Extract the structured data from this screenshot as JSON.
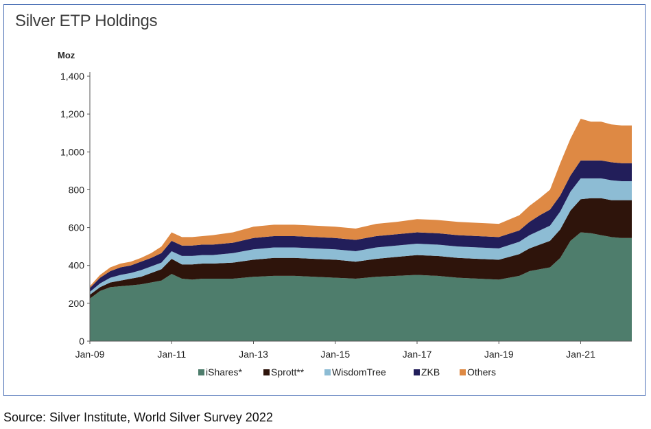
{
  "chart_data": {
    "type": "area",
    "title": "Silver ETP Holdings",
    "ylabel": "Moz",
    "xlabel": "",
    "ylim": [
      0,
      1400
    ],
    "y_ticks": [
      "0",
      "200",
      "400",
      "600",
      "800",
      "1,000",
      "1,200",
      "1,400"
    ],
    "y_tick_values": [
      0,
      200,
      400,
      600,
      800,
      1000,
      1200,
      1400
    ],
    "x_tick_labels": [
      "Jan-09",
      "Jan-11",
      "Jan-13",
      "Jan-15",
      "Jan-17",
      "Jan-19",
      "Jan-21"
    ],
    "x_tick_values": [
      2009,
      2011,
      2013,
      2015,
      2017,
      2019,
      2021
    ],
    "xlim": [
      2009,
      2022.25
    ],
    "stacked": true,
    "legend_position": "bottom",
    "x": [
      2009.0,
      2009.25,
      2009.5,
      2009.75,
      2010.0,
      2010.25,
      2010.5,
      2010.75,
      2011.0,
      2011.25,
      2011.5,
      2011.75,
      2012.0,
      2012.5,
      2013.0,
      2013.5,
      2014.0,
      2014.5,
      2015.0,
      2015.5,
      2016.0,
      2016.5,
      2017.0,
      2017.5,
      2018.0,
      2018.5,
      2019.0,
      2019.5,
      2019.75,
      2020.0,
      2020.25,
      2020.5,
      2020.75,
      2021.0,
      2021.25,
      2021.5,
      2021.75,
      2022.0,
      2022.25
    ],
    "series": [
      {
        "name": "iShares*",
        "color": "#4e7d6c",
        "values": [
          225,
          265,
          285,
          290,
          295,
          300,
          310,
          320,
          355,
          330,
          325,
          330,
          330,
          330,
          340,
          345,
          345,
          340,
          335,
          330,
          340,
          345,
          350,
          345,
          335,
          330,
          325,
          345,
          370,
          380,
          390,
          440,
          530,
          575,
          570,
          560,
          550,
          545,
          545
        ]
      },
      {
        "name": "Sprott**",
        "color": "#2e140b",
        "values": [
          20,
          20,
          25,
          30,
          35,
          40,
          50,
          60,
          80,
          75,
          80,
          80,
          80,
          85,
          90,
          95,
          95,
          95,
          95,
          90,
          95,
          100,
          105,
          105,
          105,
          105,
          105,
          115,
          120,
          130,
          140,
          150,
          160,
          175,
          185,
          195,
          195,
          200,
          200
        ]
      },
      {
        "name": "WisdomTree",
        "color": "#8dbcd4",
        "values": [
          15,
          20,
          25,
          30,
          30,
          35,
          35,
          35,
          40,
          45,
          45,
          45,
          45,
          50,
          55,
          55,
          55,
          55,
          55,
          55,
          60,
          60,
          60,
          60,
          60,
          60,
          60,
          65,
          70,
          75,
          80,
          95,
          100,
          110,
          105,
          105,
          105,
          100,
          100
        ]
      },
      {
        "name": "ZKB",
        "color": "#221e5a",
        "values": [
          20,
          30,
          35,
          40,
          40,
          45,
          45,
          50,
          55,
          55,
          55,
          55,
          55,
          55,
          60,
          60,
          60,
          60,
          60,
          60,
          60,
          60,
          60,
          60,
          60,
          60,
          60,
          60,
          70,
          80,
          85,
          85,
          85,
          95,
          95,
          95,
          95,
          95,
          95
        ]
      },
      {
        "name": "Others",
        "color": "#de8944",
        "values": [
          10,
          15,
          20,
          20,
          20,
          20,
          25,
          35,
          45,
          45,
          45,
          45,
          50,
          55,
          60,
          60,
          60,
          60,
          60,
          60,
          65,
          65,
          70,
          70,
          70,
          70,
          70,
          80,
          85,
          90,
          105,
          170,
          195,
          220,
          205,
          205,
          200,
          200,
          200
        ]
      }
    ]
  },
  "source_text": "Source:  Silver Institute, World Silver Survey 2022"
}
